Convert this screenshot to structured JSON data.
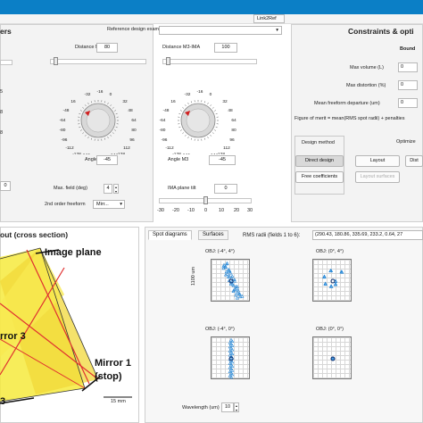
{
  "window": {
    "top_tab": "Link2Ref"
  },
  "left_panel": {
    "title": "ers",
    "left_values": [
      "5",
      "8",
      "8"
    ],
    "stepper_value": "0"
  },
  "middle_panel": {
    "reference_label": "Reference design examples",
    "distance_m2_m3": {
      "label": "Distance M2-M3",
      "value": "80",
      "slider": 0.05
    },
    "distance_m3_ima": {
      "label": "Distance M3-IMA",
      "value": "100",
      "slider": 0.05
    },
    "dial_ticks": [
      "-32",
      "-16",
      "0",
      "16",
      "32",
      "-48",
      "48",
      "-64",
      "64",
      "-80",
      "80",
      "-96",
      "96",
      "-112",
      "112",
      "-128",
      "128",
      "-144",
      "144",
      "-160",
      "160"
    ],
    "angle_m2": {
      "label": "Angle M2",
      "value": "-45"
    },
    "angle_m3": {
      "label": "Angle M3",
      "value": "-45"
    },
    "max_field": {
      "label": "Max. field (deg)",
      "value": "4"
    },
    "ima_tilt": {
      "label": "IMA plane tilt",
      "value": "0"
    },
    "freeform": {
      "label": "2nd order freeform",
      "value": "Mirr..."
    },
    "tilt_ticks": [
      "-30",
      "-20",
      "-10",
      "0",
      "10",
      "20",
      "30"
    ]
  },
  "right_panel": {
    "title": "Constraints & opti",
    "bound_header": "Bound",
    "rows": [
      {
        "label": "Max volume (L)",
        "value": "0"
      },
      {
        "label": "Max distortion (%)",
        "value": "0"
      },
      {
        "label": "Mean freeform departure (um)",
        "value": "0"
      }
    ],
    "figure_of_merit": "Figure of merit = mean(RMS spot radii) + penalties",
    "design_method_label": "Design method",
    "optimize_label": "Optimize",
    "buttons": {
      "direct_design": "Direct design",
      "layout": "Layout",
      "dist": "Dist",
      "free_coeff": "Free coefficients",
      "layout_surfaces": "Layout surfaces"
    }
  },
  "layout_panel": {
    "title": "out (cross section)",
    "image_plane": "Image plane",
    "mirror1_line1": "Mirror 1",
    "mirror1_line2": "(stop)",
    "mirror3": "rror 3",
    "mirror3b": "3",
    "scale": "15 mm"
  },
  "spot_panel": {
    "tabs": [
      "Spot diagrams",
      "Surfaces"
    ],
    "rms_label": "RMS radii (fields 1 to 6):",
    "rms_values": "(290.43, 180.86, 335.69, 233.2, 0.64, 27",
    "plots": [
      {
        "title": "OBJ: (-4°, 4°)"
      },
      {
        "title": "OBJ: (0°, 4°)"
      },
      {
        "title": "OBJ: (-4°, 0°)"
      },
      {
        "title": "OBJ: (0°, 0°)"
      }
    ],
    "y_axis_label": "1100 um",
    "wavelength": {
      "label": "Wavelength (um)",
      "value": "10"
    }
  },
  "colors": {
    "title_bar": "#0b7fc6",
    "yellow_rays": "#f6ea3d",
    "red_rays": "#e03030",
    "spot_blue": "#2a8ad8"
  }
}
